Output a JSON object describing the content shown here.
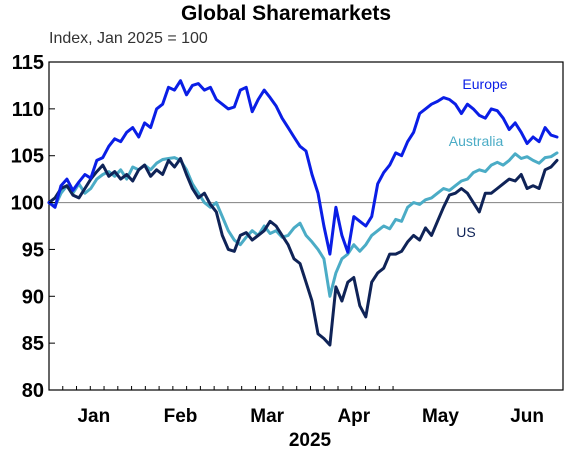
{
  "chart_data": {
    "type": "line",
    "title": "Global Sharemarkets",
    "subtitle": "Index, Jan 2025 = 100",
    "xlabel": "2025",
    "ylabel": "",
    "ylim": [
      80,
      115
    ],
    "yticks": [
      "80",
      "85",
      "90",
      "95",
      "100",
      "105",
      "110",
      "115"
    ],
    "reference_line": 100,
    "months": [
      "Jan",
      "Feb",
      "Mar",
      "Apr",
      "May",
      "Jun"
    ],
    "x_unit": "month (0 = start of Jan 2025)",
    "series": [
      {
        "name": "Europe",
        "color": "#0a1ee6",
        "points": [
          [
            0.0,
            100.0
          ],
          [
            0.1,
            99.5
          ],
          [
            0.2,
            101.8
          ],
          [
            0.3,
            102.5
          ],
          [
            0.4,
            101.3
          ],
          [
            0.5,
            102.2
          ],
          [
            0.6,
            103.0
          ],
          [
            0.7,
            102.6
          ],
          [
            0.8,
            104.5
          ],
          [
            0.9,
            104.8
          ],
          [
            1.0,
            106.0
          ],
          [
            1.1,
            106.8
          ],
          [
            1.2,
            106.5
          ],
          [
            1.3,
            107.5
          ],
          [
            1.4,
            108.0
          ],
          [
            1.5,
            107.0
          ],
          [
            1.6,
            108.5
          ],
          [
            1.7,
            108.0
          ],
          [
            1.8,
            110.0
          ],
          [
            1.9,
            110.5
          ],
          [
            2.0,
            112.3
          ],
          [
            2.1,
            112.0
          ],
          [
            2.2,
            113.0
          ],
          [
            2.3,
            111.5
          ],
          [
            2.4,
            112.5
          ],
          [
            2.5,
            112.7
          ],
          [
            2.6,
            112.0
          ],
          [
            2.7,
            112.3
          ],
          [
            2.8,
            111.0
          ],
          [
            2.9,
            110.5
          ],
          [
            3.0,
            110.0
          ],
          [
            3.1,
            110.2
          ],
          [
            3.2,
            112.0
          ],
          [
            3.3,
            112.3
          ],
          [
            3.4,
            109.7
          ],
          [
            3.5,
            111.0
          ],
          [
            3.6,
            112.0
          ],
          [
            3.7,
            111.2
          ],
          [
            3.8,
            110.3
          ],
          [
            3.9,
            109.0
          ],
          [
            4.0,
            108.0
          ],
          [
            4.1,
            107.0
          ],
          [
            4.2,
            106.0
          ],
          [
            4.3,
            105.5
          ],
          [
            4.4,
            103.0
          ],
          [
            4.5,
            101.0
          ],
          [
            4.6,
            97.5
          ],
          [
            4.7,
            94.5
          ],
          [
            4.8,
            99.5
          ],
          [
            4.9,
            96.5
          ],
          [
            5.0,
            94.7
          ],
          [
            5.1,
            98.5
          ],
          [
            5.2,
            98.0
          ],
          [
            5.3,
            97.5
          ],
          [
            5.4,
            98.5
          ],
          [
            5.5,
            102.0
          ],
          [
            5.6,
            103.2
          ],
          [
            5.7,
            104.0
          ],
          [
            5.8,
            105.3
          ],
          [
            5.9,
            105.0
          ],
          [
            6.0,
            106.5
          ],
          [
            6.1,
            107.5
          ],
          [
            6.2,
            109.5
          ],
          [
            6.3,
            110.0
          ],
          [
            6.4,
            110.5
          ],
          [
            6.5,
            110.8
          ],
          [
            6.6,
            111.2
          ],
          [
            6.7,
            111.0
          ],
          [
            6.8,
            110.5
          ],
          [
            6.9,
            109.5
          ],
          [
            7.0,
            110.5
          ],
          [
            7.1,
            110.0
          ],
          [
            7.2,
            109.3
          ],
          [
            7.3,
            109.0
          ],
          [
            7.4,
            110.0
          ],
          [
            7.5,
            109.8
          ],
          [
            7.6,
            109.0
          ],
          [
            7.7,
            107.8
          ],
          [
            7.8,
            108.5
          ],
          [
            7.9,
            107.5
          ],
          [
            8.0,
            106.3
          ],
          [
            8.1,
            107.0
          ],
          [
            8.2,
            106.5
          ],
          [
            8.3,
            108.0
          ],
          [
            8.4,
            107.2
          ],
          [
            8.5,
            107.0
          ]
        ]
      },
      {
        "name": "Australia",
        "color": "#4bacc6",
        "points": [
          [
            0.0,
            100.0
          ],
          [
            0.1,
            99.6
          ],
          [
            0.2,
            101.0
          ],
          [
            0.3,
            101.8
          ],
          [
            0.4,
            101.0
          ],
          [
            0.5,
            102.0
          ],
          [
            0.6,
            101.0
          ],
          [
            0.7,
            101.5
          ],
          [
            0.8,
            102.5
          ],
          [
            0.9,
            103.0
          ],
          [
            1.0,
            103.3
          ],
          [
            1.1,
            102.8
          ],
          [
            1.2,
            103.5
          ],
          [
            1.3,
            102.5
          ],
          [
            1.4,
            103.8
          ],
          [
            1.5,
            103.5
          ],
          [
            1.6,
            104.0
          ],
          [
            1.7,
            103.5
          ],
          [
            1.8,
            104.2
          ],
          [
            1.9,
            104.6
          ],
          [
            2.0,
            104.7
          ],
          [
            2.1,
            104.8
          ],
          [
            2.2,
            104.5
          ],
          [
            2.3,
            103.5
          ],
          [
            2.4,
            102.0
          ],
          [
            2.5,
            101.0
          ],
          [
            2.6,
            100.0
          ],
          [
            2.7,
            99.5
          ],
          [
            2.8,
            100.0
          ],
          [
            2.9,
            98.5
          ],
          [
            3.0,
            97.0
          ],
          [
            3.1,
            96.0
          ],
          [
            3.2,
            95.5
          ],
          [
            3.3,
            96.3
          ],
          [
            3.4,
            97.0
          ],
          [
            3.5,
            96.5
          ],
          [
            3.6,
            97.5
          ],
          [
            3.7,
            96.7
          ],
          [
            3.8,
            97.0
          ],
          [
            3.9,
            96.3
          ],
          [
            4.0,
            96.5
          ],
          [
            4.1,
            97.3
          ],
          [
            4.2,
            97.8
          ],
          [
            4.3,
            96.5
          ],
          [
            4.4,
            95.8
          ],
          [
            4.5,
            95.0
          ],
          [
            4.6,
            94.0
          ],
          [
            4.7,
            90.0
          ],
          [
            4.8,
            92.5
          ],
          [
            4.9,
            94.0
          ],
          [
            5.0,
            94.5
          ],
          [
            5.1,
            95.5
          ],
          [
            5.2,
            94.8
          ],
          [
            5.3,
            95.5
          ],
          [
            5.4,
            96.5
          ],
          [
            5.5,
            97.0
          ],
          [
            5.6,
            97.5
          ],
          [
            5.7,
            97.2
          ],
          [
            5.8,
            98.2
          ],
          [
            5.9,
            98.0
          ],
          [
            6.0,
            99.5
          ],
          [
            6.1,
            100.0
          ],
          [
            6.2,
            99.8
          ],
          [
            6.3,
            100.3
          ],
          [
            6.4,
            100.5
          ],
          [
            6.5,
            101.0
          ],
          [
            6.6,
            101.5
          ],
          [
            6.7,
            101.3
          ],
          [
            6.8,
            101.8
          ],
          [
            6.9,
            102.3
          ],
          [
            7.0,
            102.5
          ],
          [
            7.1,
            103.2
          ],
          [
            7.2,
            103.5
          ],
          [
            7.3,
            103.3
          ],
          [
            7.4,
            104.0
          ],
          [
            7.5,
            104.3
          ],
          [
            7.6,
            104.0
          ],
          [
            7.7,
            104.5
          ],
          [
            7.8,
            105.2
          ],
          [
            7.9,
            104.7
          ],
          [
            8.0,
            104.9
          ],
          [
            8.1,
            104.5
          ],
          [
            8.2,
            104.2
          ],
          [
            8.3,
            104.8
          ],
          [
            8.4,
            104.9
          ],
          [
            8.5,
            105.3
          ]
        ]
      },
      {
        "name": "US",
        "color": "#0f2357",
        "points": [
          [
            0.0,
            100.0
          ],
          [
            0.1,
            100.5
          ],
          [
            0.2,
            101.5
          ],
          [
            0.3,
            101.8
          ],
          [
            0.4,
            100.8
          ],
          [
            0.5,
            100.5
          ],
          [
            0.6,
            101.5
          ],
          [
            0.7,
            102.5
          ],
          [
            0.8,
            103.3
          ],
          [
            0.9,
            104.0
          ],
          [
            1.0,
            102.8
          ],
          [
            1.1,
            103.3
          ],
          [
            1.2,
            102.5
          ],
          [
            1.3,
            103.0
          ],
          [
            1.4,
            102.3
          ],
          [
            1.5,
            103.5
          ],
          [
            1.6,
            104.0
          ],
          [
            1.7,
            102.8
          ],
          [
            1.8,
            103.5
          ],
          [
            1.9,
            103.0
          ],
          [
            2.0,
            104.5
          ],
          [
            2.1,
            103.8
          ],
          [
            2.2,
            104.7
          ],
          [
            2.3,
            103.0
          ],
          [
            2.4,
            101.5
          ],
          [
            2.5,
            100.5
          ],
          [
            2.6,
            101.0
          ],
          [
            2.7,
            99.8
          ],
          [
            2.8,
            99.0
          ],
          [
            2.9,
            96.5
          ],
          [
            3.0,
            95.0
          ],
          [
            3.1,
            94.8
          ],
          [
            3.2,
            96.5
          ],
          [
            3.3,
            96.8
          ],
          [
            3.4,
            96.0
          ],
          [
            3.5,
            96.5
          ],
          [
            3.6,
            97.0
          ],
          [
            3.7,
            98.0
          ],
          [
            3.8,
            97.5
          ],
          [
            3.9,
            96.5
          ],
          [
            4.0,
            95.5
          ],
          [
            4.1,
            94.0
          ],
          [
            4.2,
            93.5
          ],
          [
            4.3,
            91.5
          ],
          [
            4.4,
            89.5
          ],
          [
            4.5,
            86.0
          ],
          [
            4.6,
            85.5
          ],
          [
            4.7,
            84.8
          ],
          [
            4.8,
            91.0
          ],
          [
            4.9,
            89.5
          ],
          [
            5.0,
            91.5
          ],
          [
            5.1,
            92.0
          ],
          [
            5.2,
            89.0
          ],
          [
            5.3,
            87.8
          ],
          [
            5.4,
            91.5
          ],
          [
            5.5,
            92.5
          ],
          [
            5.6,
            93.0
          ],
          [
            5.7,
            94.5
          ],
          [
            5.8,
            94.5
          ],
          [
            5.9,
            94.8
          ],
          [
            6.0,
            95.8
          ],
          [
            6.1,
            96.5
          ],
          [
            6.2,
            96.0
          ],
          [
            6.3,
            97.3
          ],
          [
            6.4,
            96.5
          ],
          [
            6.5,
            98.0
          ],
          [
            6.6,
            99.5
          ],
          [
            6.7,
            100.8
          ],
          [
            6.8,
            101.0
          ],
          [
            6.9,
            101.5
          ],
          [
            7.0,
            101.0
          ],
          [
            7.1,
            100.0
          ],
          [
            7.2,
            99.0
          ],
          [
            7.3,
            101.0
          ],
          [
            7.4,
            101.0
          ],
          [
            7.5,
            101.5
          ],
          [
            7.6,
            102.0
          ],
          [
            7.7,
            102.5
          ],
          [
            7.8,
            102.3
          ],
          [
            7.9,
            103.0
          ],
          [
            8.0,
            101.5
          ],
          [
            8.1,
            101.8
          ],
          [
            8.2,
            101.5
          ],
          [
            8.3,
            103.5
          ],
          [
            8.4,
            103.8
          ],
          [
            8.5,
            104.5
          ]
        ]
      }
    ]
  }
}
